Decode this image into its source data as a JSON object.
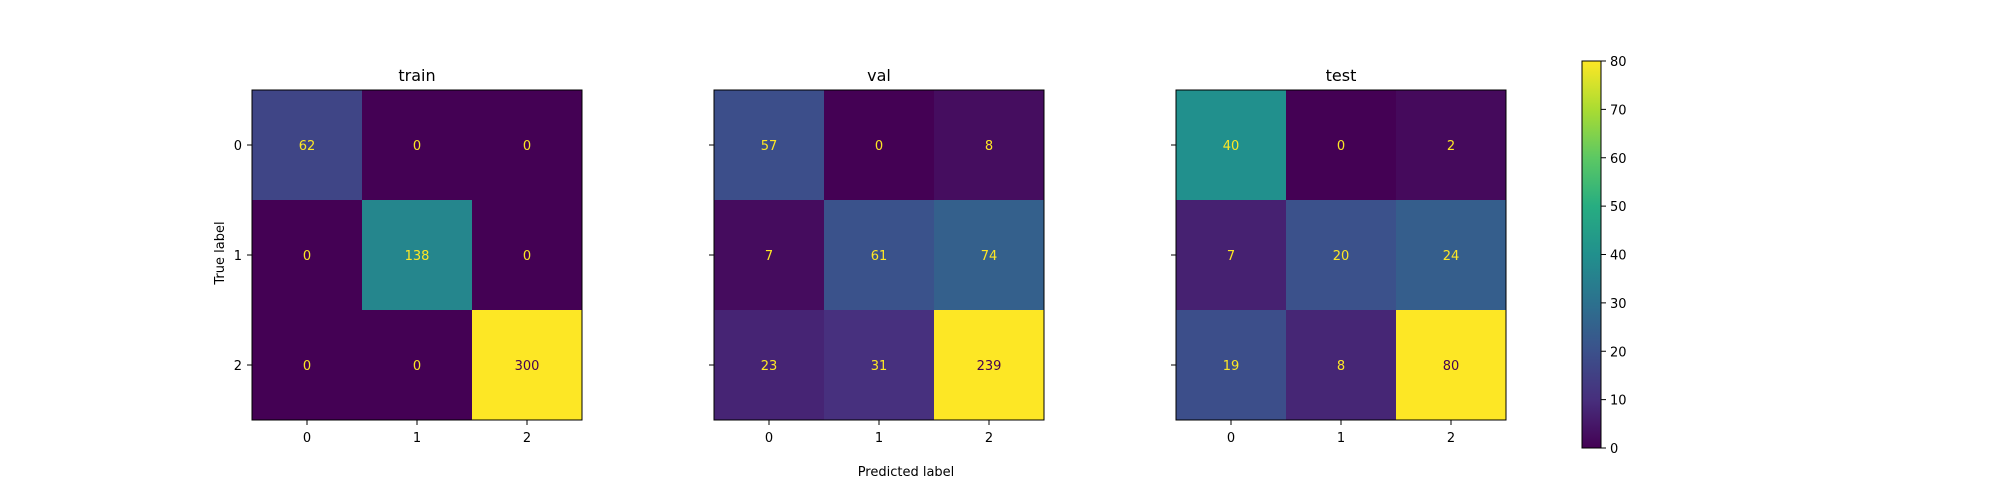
{
  "chart_data": [
    {
      "type": "heatmap",
      "title": "train",
      "x_ticks": [
        "0",
        "1",
        "2"
      ],
      "y_ticks": [
        "0",
        "1",
        "2"
      ],
      "values": [
        [
          62,
          0,
          0
        ],
        [
          0,
          138,
          0
        ],
        [
          0,
          0,
          300
        ]
      ]
    },
    {
      "type": "heatmap",
      "title": "val",
      "x_ticks": [
        "0",
        "1",
        "2"
      ],
      "y_ticks": [
        "0",
        "1",
        "2"
      ],
      "values": [
        [
          57,
          0,
          8
        ],
        [
          7,
          61,
          74
        ],
        [
          23,
          31,
          239
        ]
      ]
    },
    {
      "type": "heatmap",
      "title": "test",
      "x_ticks": [
        "0",
        "1",
        "2"
      ],
      "y_ticks": [
        "0",
        "1",
        "2"
      ],
      "values": [
        [
          40,
          0,
          2
        ],
        [
          7,
          20,
          24
        ],
        [
          19,
          8,
          80
        ]
      ]
    }
  ],
  "xlabel": "Predicted label",
  "ylabel": "True label",
  "colormap": "viridis",
  "colorbar": {
    "range": [
      0,
      80
    ],
    "ticks": [
      "0",
      "10",
      "20",
      "30",
      "40",
      "50",
      "60",
      "70",
      "80"
    ]
  },
  "label_colors": {
    "light": "#fde725",
    "dark": "#440154"
  }
}
